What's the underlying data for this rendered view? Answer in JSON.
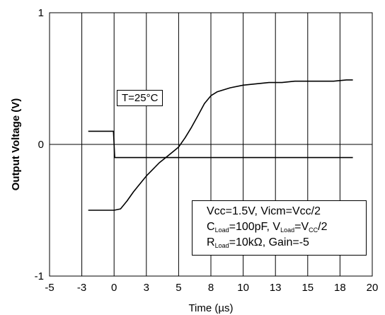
{
  "chart_data": {
    "type": "line",
    "title": "",
    "xlabel": "Time (µs)",
    "ylabel": "Output Voltage (V)",
    "xlim": [
      -5,
      20
    ],
    "ylim": [
      -1,
      1
    ],
    "xticks": [
      -5,
      -2.5,
      0,
      2.5,
      5,
      7.5,
      10,
      12.5,
      15,
      17.5,
      20
    ],
    "xtick_labels": [
      "-5",
      "-3",
      "0",
      "3",
      "5",
      "8",
      "10",
      "13",
      "15",
      "18",
      "20"
    ],
    "yticks": [
      -1,
      0,
      1
    ],
    "ytick_labels": [
      "-1",
      "0",
      "1"
    ],
    "grid": "vertical",
    "series": [
      {
        "values_x": [
          -2,
          -0.05,
          0.05,
          18.5
        ],
        "values_y": [
          0.1,
          0.1,
          -0.1,
          -0.1
        ],
        "color": "#000000"
      },
      {
        "values_x": [
          -2,
          0,
          0.5,
          1,
          1.5,
          2,
          2.5,
          3,
          3.5,
          4,
          4.5,
          5,
          5.5,
          6,
          6.5,
          7,
          7.5,
          8,
          9,
          10,
          11,
          12,
          13,
          14,
          15,
          16,
          17,
          18,
          18.5
        ],
        "values_y": [
          -0.5,
          -0.5,
          -0.49,
          -0.43,
          -0.36,
          -0.3,
          -0.24,
          -0.19,
          -0.14,
          -0.1,
          -0.06,
          -0.02,
          0.05,
          0.13,
          0.22,
          0.31,
          0.37,
          0.4,
          0.43,
          0.45,
          0.46,
          0.47,
          0.47,
          0.48,
          0.48,
          0.48,
          0.48,
          0.49,
          0.49
        ],
        "color": "#000000"
      }
    ],
    "annotations": {
      "temperature": "T=25°C",
      "cond_line1": "Vcc=1.5V, Vicm=Vcc/2",
      "cond_line2_a": "C",
      "cond_line2_b": "Load",
      "cond_line2_c": "=100pF, V",
      "cond_line2_d": "Load",
      "cond_line2_e": "=V",
      "cond_line2_f": "CC",
      "cond_line2_g": "/2",
      "cond_line3_a": "R",
      "cond_line3_b": "Load",
      "cond_line3_c": "=10kΩ, Gain=-5"
    }
  }
}
